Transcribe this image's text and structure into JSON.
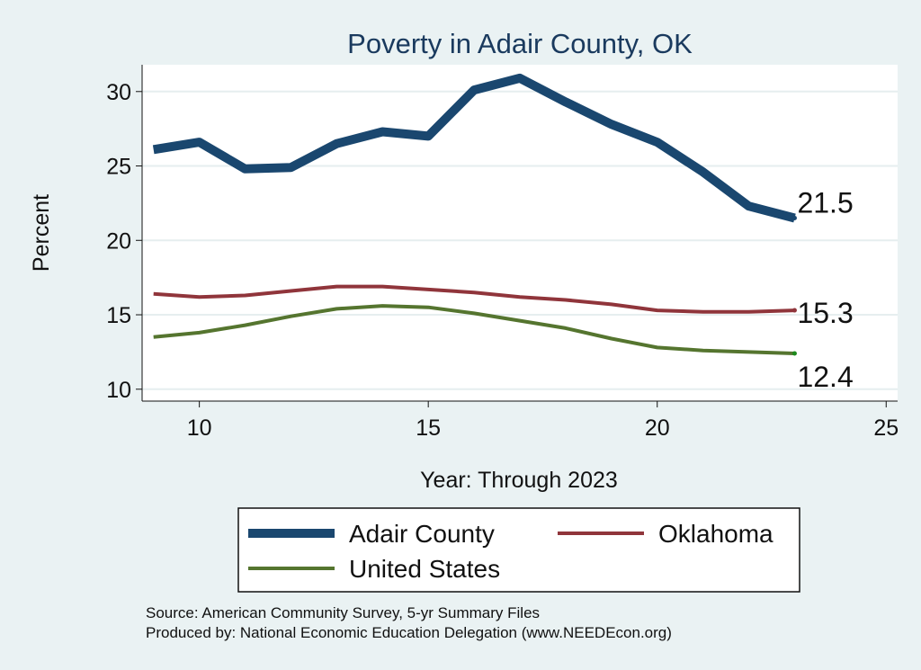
{
  "chart_data": {
    "type": "line",
    "title": "Poverty in Adair County, OK",
    "xlabel": "Year: Through 2023",
    "ylabel": "Percent",
    "xlim": [
      8.75,
      25.25
    ],
    "ylim": [
      9.2,
      31.8
    ],
    "xticks": [
      10,
      15,
      20,
      25
    ],
    "yticks": [
      10,
      15,
      20,
      25,
      30
    ],
    "grid": true,
    "series": [
      {
        "name": "Adair County",
        "color": "#1a476f",
        "x": [
          9,
          10,
          11,
          12,
          13,
          14,
          15,
          16,
          17,
          18,
          19,
          20,
          21,
          22,
          23
        ],
        "values": [
          26.1,
          26.6,
          24.8,
          24.9,
          26.5,
          27.3,
          27.0,
          30.1,
          30.9,
          29.3,
          27.8,
          26.6,
          24.6,
          22.3,
          21.5
        ],
        "end_label": "21.5"
      },
      {
        "name": "Oklahoma",
        "color": "#90353b",
        "x": [
          9,
          10,
          11,
          12,
          13,
          14,
          15,
          16,
          17,
          18,
          19,
          20,
          21,
          22,
          23
        ],
        "values": [
          16.4,
          16.2,
          16.3,
          16.6,
          16.9,
          16.9,
          16.7,
          16.5,
          16.2,
          16.0,
          15.7,
          15.3,
          15.2,
          15.2,
          15.3
        ],
        "end_label": "15.3"
      },
      {
        "name": "United States",
        "color": "#55752f",
        "x": [
          9,
          10,
          11,
          12,
          13,
          14,
          15,
          16,
          17,
          18,
          19,
          20,
          21,
          22,
          23
        ],
        "values": [
          13.5,
          13.8,
          14.3,
          14.9,
          15.4,
          15.6,
          15.5,
          15.1,
          14.6,
          14.1,
          13.4,
          12.8,
          12.6,
          12.5,
          12.4
        ],
        "end_label": "12.4"
      }
    ],
    "legend_position": "bottom"
  },
  "footer": {
    "source": "Source: American Community Survey, 5-yr Summary Files",
    "produced_by": "Produced by: National Economic Education Delegation (www.NEEDEcon.org)"
  },
  "colors": {
    "background": "#eaf2f3",
    "plot_background": "#ffffff",
    "gridline": "#e6eeef",
    "title": "#1a3a5e"
  }
}
